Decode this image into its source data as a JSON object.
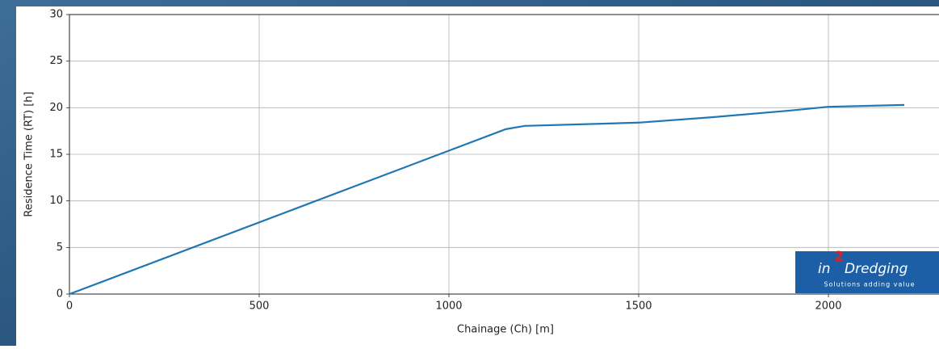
{
  "chart_data": {
    "type": "line",
    "xlabel": "Chainage (Ch) [m]",
    "ylabel": "Residence Time (RT) [h]",
    "x": [
      0,
      1150,
      1200,
      1500,
      1700,
      1900,
      2000,
      2200
    ],
    "values": [
      0,
      17.7,
      18.05,
      18.4,
      19.0,
      19.7,
      20.1,
      20.3
    ],
    "color": "#1f77b4",
    "xlim": [
      0,
      2285
    ],
    "xticks": [
      0,
      500,
      1000,
      1500,
      2000
    ],
    "ylim": [
      0,
      30
    ],
    "yticks": [
      0,
      5,
      10,
      15,
      20,
      25,
      30
    ],
    "grid": true
  },
  "logo": {
    "prefix": "in",
    "superscript": "2",
    "name": "Dredging",
    "tagline": "Solutions adding value"
  }
}
